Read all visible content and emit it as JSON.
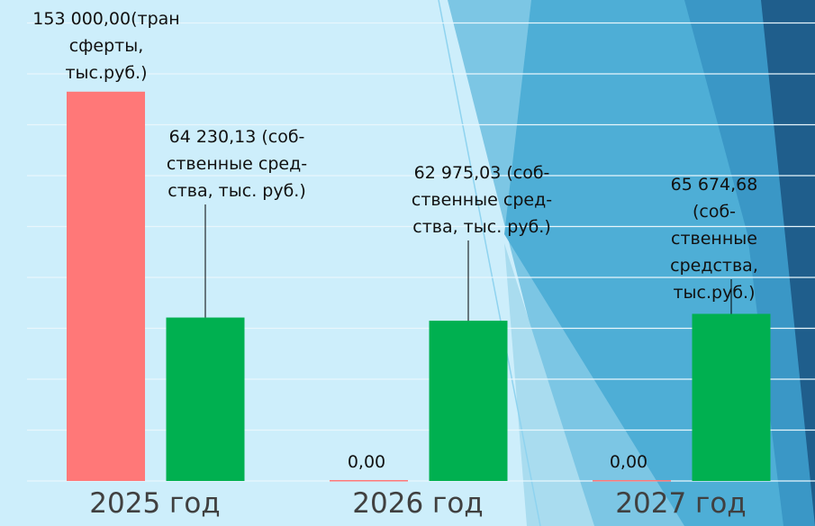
{
  "chart_data": {
    "type": "bar",
    "categories": [
      "2025 год",
      "2026 год",
      "2027 год"
    ],
    "series": [
      {
        "color": "#ff7878",
        "values": [
          153000,
          0,
          0
        ],
        "value_labels": [
          "153 000,00(тран\nсферты,\nтыс.руб.)",
          "0,00",
          "0,00"
        ]
      },
      {
        "color": "#00b050",
        "values": [
          64230.13,
          62975.03,
          65674.68
        ],
        "value_labels": [
          "64 230,13 (соб-\nственные сред-\nства, тыс. руб.)",
          "62 975,03 (соб-\nственные сред-\nства, тыс. руб.)",
          "65 674,68 (соб-\nственные\nсредства,\nтыс.руб.)"
        ]
      }
    ],
    "ylim": [
      0,
      180000
    ],
    "yticks": [
      0,
      20000,
      40000,
      60000,
      80000,
      100000,
      120000,
      140000,
      160000,
      180000
    ],
    "grid": true
  }
}
